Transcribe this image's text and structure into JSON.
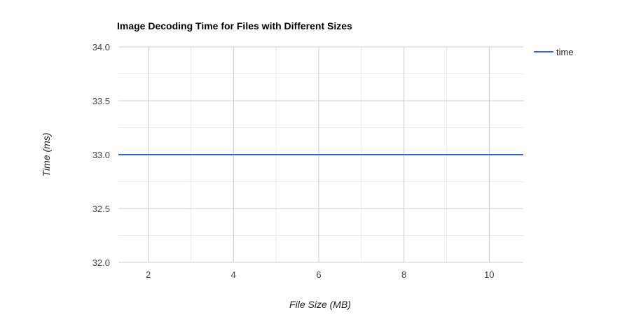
{
  "chart_data": {
    "type": "line",
    "title": "Image Decoding Time for Files with Different Sizes",
    "xlabel": "File Size (MB)",
    "ylabel": "Time (ms)",
    "xlim": [
      1.3,
      10.8
    ],
    "ylim": [
      32.0,
      34.0
    ],
    "x_ticks": [
      2,
      4,
      6,
      8,
      10
    ],
    "x_tick_labels": [
      "2",
      "4",
      "6",
      "8",
      "10"
    ],
    "x_minor_ticks": [
      3,
      5,
      7,
      9
    ],
    "y_ticks": [
      32.0,
      32.5,
      33.0,
      33.5,
      34.0
    ],
    "y_tick_labels": [
      "32.0",
      "32.5",
      "33.0",
      "33.5",
      "34.0"
    ],
    "y_minor_ticks": [
      32.25,
      32.75,
      33.25,
      33.75
    ],
    "series": [
      {
        "name": "time",
        "color": "#3366cc",
        "x": [
          1.3,
          10.8
        ],
        "y": [
          33.0,
          33.0
        ]
      }
    ],
    "legend_position": "right",
    "grid": true
  }
}
